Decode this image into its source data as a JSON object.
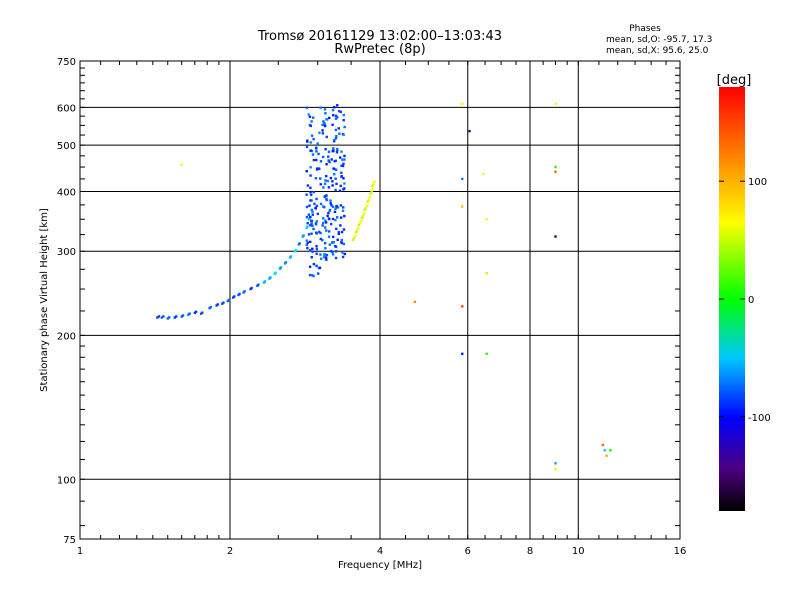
{
  "header": {
    "title_line1": "Tromsø 20161129 13:02:00–13:03:43",
    "title_line2": "RwPretec (8p)",
    "phase_title": "Phases",
    "phase_line1": "mean, sd,O: -95.7, 17.3",
    "phase_line2": "mean, sd,X:  95.6, 25.0"
  },
  "colorbar": {
    "label": "[deg]",
    "min": -180,
    "max": 180,
    "ticks": [
      100,
      0,
      -100
    ],
    "tick_labels": [
      "100",
      "0",
      "-100"
    ]
  },
  "chart_data": {
    "type": "scatter",
    "xlabel": "Frequency [MHz]",
    "ylabel": "Stationary phase Virtual Height [km]",
    "xscale": "log",
    "yscale": "log",
    "xlim": [
      1,
      16
    ],
    "ylim": [
      75,
      750
    ],
    "grid": true,
    "x_ticks": [
      1,
      2,
      4,
      6,
      8,
      10,
      16
    ],
    "x_tick_labels": [
      "1",
      "2",
      "4",
      "6",
      "8",
      "10",
      "16"
    ],
    "y_ticks": [
      75,
      100,
      200,
      300,
      400,
      500,
      600,
      750
    ],
    "y_tick_labels": [
      "75",
      "100",
      "200",
      "300",
      "400",
      "500",
      "600",
      "750"
    ],
    "o_trace": {
      "phase": -95.7,
      "sd": 17.3
    },
    "x_trace": {
      "phase": 95.6,
      "sd": 25.0
    },
    "lower_trace_points": [
      [
        1.43,
        218
      ],
      [
        1.46,
        218
      ],
      [
        1.5,
        217
      ],
      [
        1.55,
        218
      ],
      [
        1.6,
        219
      ],
      [
        1.65,
        221
      ],
      [
        1.7,
        223
      ],
      [
        1.75,
        222
      ],
      [
        1.82,
        228
      ],
      [
        1.88,
        231
      ],
      [
        1.93,
        233
      ],
      [
        1.98,
        236
      ],
      [
        2.03,
        240
      ],
      [
        2.08,
        243
      ],
      [
        2.13,
        246
      ],
      [
        2.2,
        250
      ],
      [
        2.27,
        254
      ],
      [
        2.34,
        258
      ],
      [
        2.4,
        263
      ],
      [
        2.46,
        269
      ],
      [
        2.52,
        276
      ],
      [
        2.58,
        283
      ],
      [
        2.64,
        291
      ],
      [
        2.7,
        300
      ],
      [
        2.75,
        310
      ],
      [
        2.8,
        322
      ],
      [
        2.85,
        336
      ],
      [
        2.88,
        350
      ]
    ],
    "x_trace_points": [
      [
        3.55,
        320
      ],
      [
        3.6,
        332
      ],
      [
        3.65,
        344
      ],
      [
        3.7,
        356
      ],
      [
        3.75,
        370
      ],
      [
        3.8,
        385
      ],
      [
        3.85,
        400
      ],
      [
        3.88,
        415
      ]
    ],
    "scattered_points": [
      {
        "x": 1.6,
        "y": 455,
        "phase": 100
      },
      {
        "x": 4.7,
        "y": 235,
        "phase": 140
      },
      {
        "x": 5.85,
        "y": 610,
        "phase": 110
      },
      {
        "x": 5.85,
        "y": 425,
        "phase": -80
      },
      {
        "x": 5.85,
        "y": 372,
        "phase": 120
      },
      {
        "x": 5.85,
        "y": 230,
        "phase": 160
      },
      {
        "x": 5.85,
        "y": 183,
        "phase": -110
      },
      {
        "x": 6.05,
        "y": 535,
        "phase": -155
      },
      {
        "x": 6.45,
        "y": 435,
        "phase": 100
      },
      {
        "x": 6.55,
        "y": 350,
        "phase": 100
      },
      {
        "x": 6.55,
        "y": 270,
        "phase": 90
      },
      {
        "x": 6.55,
        "y": 183,
        "phase": 40
      },
      {
        "x": 9.0,
        "y": 610,
        "phase": 110
      },
      {
        "x": 9.0,
        "y": 450,
        "phase": 40
      },
      {
        "x": 9.0,
        "y": 440,
        "phase": 150
      },
      {
        "x": 9.0,
        "y": 322,
        "phase": -160
      },
      {
        "x": 9.0,
        "y": 108,
        "phase": -70
      },
      {
        "x": 9.0,
        "y": 105,
        "phase": 110
      },
      {
        "x": 11.2,
        "y": 118,
        "phase": 150
      },
      {
        "x": 11.3,
        "y": 115,
        "phase": -60
      },
      {
        "x": 11.6,
        "y": 115,
        "phase": 30
      },
      {
        "x": 11.4,
        "y": 112,
        "phase": 130
      }
    ]
  }
}
